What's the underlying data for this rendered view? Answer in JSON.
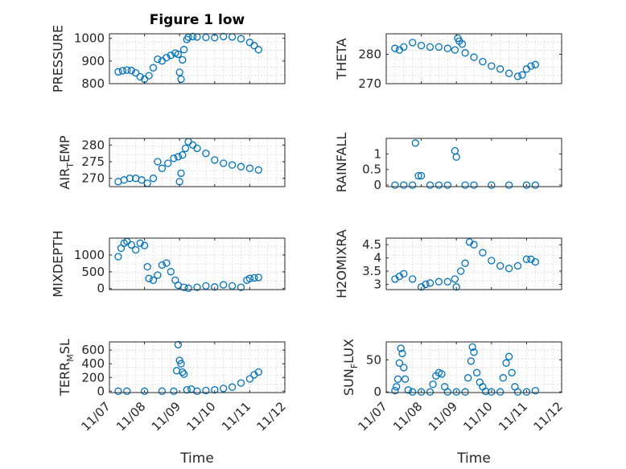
{
  "figure": {
    "title": "Figure 1 low"
  },
  "chart_data": [
    {
      "type": "scatter",
      "ylabel": "PRESSURE",
      "ylabel_sub": "",
      "ylabel_rest": "",
      "ylim": [
        800,
        1020
      ],
      "yticks": [
        800,
        900,
        1000
      ],
      "ytick_labels": [
        "800",
        "900",
        "1000"
      ],
      "grid": true,
      "x": [
        "11/07 06:00",
        "11/07 09:00",
        "11/07 12:00",
        "11/07 15:00",
        "11/07 18:00",
        "11/07 21:00",
        "11/08 00:00",
        "11/08 03:00",
        "11/08 06:00",
        "11/08 09:00",
        "11/08 12:00",
        "11/08 15:00",
        "11/08 18:00",
        "11/08 21:00",
        "11/08 23:00",
        "11/09 00:00",
        "11/09 01:00",
        "11/09 02:00",
        "11/09 03:00",
        "11/09 05:00",
        "11/09 06:00",
        "11/09 09:00",
        "11/09 12:00",
        "11/09 18:00",
        "11/10 00:00",
        "11/10 06:00",
        "11/10 12:00",
        "11/10 18:00",
        "11/11 00:00",
        "11/11 03:00",
        "11/11 06:00"
      ],
      "y": [
        852,
        857,
        860,
        858,
        848,
        830,
        820,
        835,
        870,
        908,
        900,
        915,
        925,
        935,
        930,
        850,
        820,
        905,
        950,
        995,
        1005,
        1008,
        1006,
        1004,
        1003,
        1008,
        1006,
        998,
        982,
        968,
        950
      ]
    },
    {
      "type": "scatter",
      "ylabel": "THETA",
      "ylabel_sub": "",
      "ylabel_rest": "",
      "ylim": [
        270,
        287
      ],
      "yticks": [
        270,
        280
      ],
      "ytick_labels": [
        "270",
        "280"
      ],
      "grid": true,
      "x": [
        "11/07 06:00",
        "11/07 09:00",
        "11/07 12:00",
        "11/07 18:00",
        "11/08 00:00",
        "11/08 06:00",
        "11/08 12:00",
        "11/08 18:00",
        "11/08 23:00",
        "11/09 01:00",
        "11/09 02:00",
        "11/09 04:00",
        "11/09 06:00",
        "11/09 12:00",
        "11/09 18:00",
        "11/10 00:00",
        "11/10 06:00",
        "11/10 12:00",
        "11/10 18:00",
        "11/10 21:00",
        "11/11 00:00",
        "11/11 03:00",
        "11/11 06:00"
      ],
      "y": [
        282,
        281.5,
        282.5,
        284,
        283,
        282.5,
        282.5,
        282,
        281.5,
        285.5,
        284.5,
        283.5,
        280.5,
        279,
        277.5,
        276,
        275,
        273.5,
        272.5,
        273,
        275,
        276,
        276.5
      ]
    },
    {
      "type": "scatter",
      "ylabel": "AIR",
      "ylabel_sub": "T",
      "ylabel_rest": "EMP",
      "ylim": [
        267.5,
        282
      ],
      "yticks": [
        270,
        275,
        280
      ],
      "ytick_labels": [
        "270",
        "275",
        "280"
      ],
      "grid": true,
      "x": [
        "11/07 06:00",
        "11/07 10:00",
        "11/07 14:00",
        "11/07 18:00",
        "11/07 22:00",
        "11/08 02:00",
        "11/08 06:00",
        "11/08 09:00",
        "11/08 12:00",
        "11/08 16:00",
        "11/08 20:00",
        "11/08 23:00",
        "11/09 00:00",
        "11/09 01:00",
        "11/09 02:00",
        "11/09 04:00",
        "11/09 06:00",
        "11/09 09:00",
        "11/09 12:00",
        "11/09 18:00",
        "11/10 00:00",
        "11/10 06:00",
        "11/10 12:00",
        "11/10 18:00",
        "11/11 00:00",
        "11/11 06:00"
      ],
      "y": [
        269,
        269.5,
        270,
        270,
        269.5,
        268.5,
        270,
        275,
        273,
        274.5,
        276,
        276.5,
        269,
        271.5,
        277,
        279,
        281,
        280,
        279,
        277.5,
        275.5,
        274.5,
        274,
        273.5,
        273,
        272.5
      ]
    },
    {
      "type": "scatter",
      "ylabel": "RAINFALL",
      "ylabel_sub": "",
      "ylabel_rest": "",
      "ylim": [
        -0.05,
        1.5
      ],
      "yticks": [
        0,
        0.5,
        1
      ],
      "ytick_labels": [
        "0",
        "0.5",
        "1"
      ],
      "grid": false,
      "x": [
        "11/07 06:00",
        "11/07 12:00",
        "11/07 18:00",
        "11/07 20:00",
        "11/07 22:00",
        "11/08 00:00",
        "11/08 06:00",
        "11/08 12:00",
        "11/08 18:00",
        "11/08 23:00",
        "11/09 00:00",
        "11/09 06:00",
        "11/09 12:00",
        "11/10 00:00",
        "11/10 12:00",
        "11/11 00:00",
        "11/11 06:00"
      ],
      "y": [
        0,
        0,
        0,
        1.35,
        0.3,
        0.3,
        0,
        0,
        0,
        1.1,
        0.9,
        0,
        0,
        0,
        0,
        0,
        0
      ]
    },
    {
      "type": "scatter",
      "ylabel": "MIXDEPTH",
      "ylabel_sub": "",
      "ylabel_rest": "",
      "ylim": [
        -30,
        1500
      ],
      "yticks": [
        0,
        500,
        1000
      ],
      "ytick_labels": [
        "0",
        "500",
        "1000"
      ],
      "grid": true,
      "x": [
        "11/07 06:00",
        "11/07 08:00",
        "11/07 10:00",
        "11/07 12:00",
        "11/07 15:00",
        "11/07 18:00",
        "11/07 21:00",
        "11/08 00:00",
        "11/08 02:00",
        "11/08 03:00",
        "11/08 06:00",
        "11/08 09:00",
        "11/08 12:00",
        "11/08 15:00",
        "11/08 18:00",
        "11/08 21:00",
        "11/08 23:00",
        "11/09 03:00",
        "11/09 06:00",
        "11/09 12:00",
        "11/09 18:00",
        "11/10 00:00",
        "11/10 06:00",
        "11/10 12:00",
        "11/10 18:00",
        "11/10 22:00",
        "11/11 00:00",
        "11/11 03:00",
        "11/11 06:00"
      ],
      "y": [
        950,
        1200,
        1350,
        1400,
        1300,
        1150,
        1350,
        1280,
        650,
        300,
        250,
        400,
        700,
        760,
        500,
        250,
        100,
        40,
        10,
        40,
        80,
        50,
        110,
        80,
        40,
        250,
        300,
        320,
        330
      ]
    },
    {
      "type": "scatter",
      "ylabel": "H2OMIXRA",
      "ylabel_sub": "",
      "ylabel_rest": "",
      "ylim": [
        2.8,
        4.75
      ],
      "yticks": [
        3,
        3.5,
        4,
        4.5
      ],
      "ytick_labels": [
        "3",
        "3.5",
        "4",
        "4.5"
      ],
      "grid": true,
      "x": [
        "11/07 06:00",
        "11/07 09:00",
        "11/07 12:00",
        "11/07 18:00",
        "11/08 00:00",
        "11/08 03:00",
        "11/08 06:00",
        "11/08 12:00",
        "11/08 18:00",
        "11/08 23:00",
        "11/09 00:00",
        "11/09 03:00",
        "11/09 06:00",
        "11/09 09:00",
        "11/09 12:00",
        "11/09 18:00",
        "11/10 00:00",
        "11/10 06:00",
        "11/10 12:00",
        "11/10 18:00",
        "11/11 00:00",
        "11/11 03:00",
        "11/11 06:00"
      ],
      "y": [
        3.2,
        3.3,
        3.4,
        3.2,
        2.9,
        3,
        3.05,
        3.1,
        3.1,
        3.2,
        2.9,
        3.5,
        3.8,
        4.6,
        4.5,
        4.2,
        3.9,
        3.7,
        3.6,
        3.7,
        3.95,
        3.95,
        3.85
      ]
    },
    {
      "type": "scatter",
      "ylabel": "TERR",
      "ylabel_sub": "M",
      "ylabel_rest": "SL",
      "ylim": [
        -20,
        720
      ],
      "yticks": [
        0,
        200,
        400,
        600
      ],
      "ytick_labels": [
        "0",
        "200",
        "400",
        "600"
      ],
      "grid": true,
      "x": [
        "11/07 06:00",
        "11/07 12:00",
        "11/08 00:00",
        "11/08 12:00",
        "11/08 20:00",
        "11/08 22:00",
        "11/08 23:00",
        "11/09 00:00",
        "11/09 01:00",
        "11/09 02:00",
        "11/09 03:00",
        "11/09 05:00",
        "11/09 08:00",
        "11/09 12:00",
        "11/09 18:00",
        "11/10 00:00",
        "11/10 06:00",
        "11/10 12:00",
        "11/10 18:00",
        "11/11 00:00",
        "11/11 03:00",
        "11/11 06:00"
      ],
      "y": [
        0,
        0,
        0,
        0,
        0,
        300,
        680,
        450,
        400,
        280,
        250,
        20,
        30,
        0,
        10,
        20,
        40,
        60,
        120,
        180,
        240,
        280
      ]
    },
    {
      "type": "scatter",
      "ylabel": "SUN",
      "ylabel_sub": "F",
      "ylabel_rest": "LUX",
      "ylim": [
        -1,
        78
      ],
      "yticks": [
        0,
        50
      ],
      "ytick_labels": [
        "0",
        "50"
      ],
      "grid": true,
      "x": [
        "11/07 06:00",
        "11/07 07:00",
        "11/07 08:00",
        "11/07 09:00",
        "11/07 10:00",
        "11/07 11:00",
        "11/07 12:00",
        "11/07 13:00",
        "11/07 15:00",
        "11/07 18:00",
        "11/08 00:00",
        "11/08 06:00",
        "11/08 08:00",
        "11/08 10:00",
        "11/08 12:00",
        "11/08 14:00",
        "11/08 16:00",
        "11/08 18:00",
        "11/09 00:00",
        "11/09 06:00",
        "11/09 08:00",
        "11/09 10:00",
        "11/09 11:00",
        "11/09 12:00",
        "11/09 14:00",
        "11/09 16:00",
        "11/09 18:00",
        "11/09 20:00",
        "11/10 00:00",
        "11/10 06:00",
        "11/10 08:00",
        "11/10 10:00",
        "11/10 12:00",
        "11/10 14:00",
        "11/10 16:00",
        "11/10 18:00",
        "11/11 00:00",
        "11/11 06:00"
      ],
      "y": [
        2,
        8,
        20,
        45,
        68,
        60,
        38,
        20,
        3,
        0,
        0,
        0,
        12,
        25,
        30,
        28,
        8,
        0,
        0,
        0,
        22,
        48,
        70,
        62,
        30,
        15,
        8,
        1,
        0,
        0,
        22,
        45,
        55,
        30,
        8,
        0,
        0,
        2
      ]
    }
  ],
  "x_axis": {
    "ticks": [
      "11/07",
      "11/08",
      "11/09",
      "11/10",
      "11/11",
      "11/12"
    ],
    "range": [
      "11/07 00:00",
      "11/12 00:00"
    ],
    "label": "Time"
  }
}
